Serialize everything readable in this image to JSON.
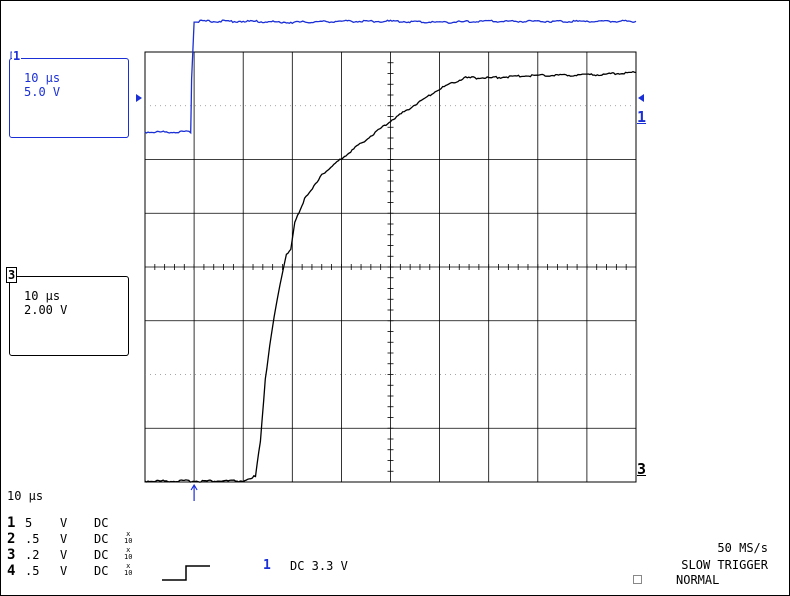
{
  "ch1_box": {
    "label": "1",
    "timebase": "10 μs",
    "scale": "5.0 V",
    "color": "#1a2fd6"
  },
  "ch3_box": {
    "label": "3",
    "timebase": "10 μs",
    "scale": "2.00 V",
    "color": "#000000"
  },
  "right_markers": {
    "ch1": "1",
    "ch3": "3"
  },
  "timebase_label": "10 μs",
  "channels": [
    {
      "num": "1",
      "scale": "5",
      "unit": "V",
      "coupling": "DC",
      "probe": ""
    },
    {
      "num": "2",
      "scale": ".5",
      "unit": "V",
      "coupling": "DC",
      "probe": "x\n10"
    },
    {
      "num": "3",
      "scale": ".2",
      "unit": "V",
      "coupling": "DC",
      "probe": "x\n10"
    },
    {
      "num": "4",
      "scale": ".5",
      "unit": "V",
      "coupling": "DC",
      "probe": "x\n10"
    }
  ],
  "trigger": {
    "source": "1",
    "level": "DC 3.3 V"
  },
  "acquisition": {
    "rate": "50 MS/s",
    "mode": "SLOW TRIGGER",
    "trigger_mode": "NORMAL"
  },
  "chart_data": {
    "type": "line",
    "divisions_x": 10,
    "divisions_y": 8,
    "x_unit": "μs",
    "x_per_div": 10,
    "xlim": [
      0,
      100
    ],
    "trigger_x": 10,
    "series": [
      {
        "name": "1",
        "color": "#1a2fd6",
        "volts_per_div": 5,
        "points": [
          [
            0,
            0
          ],
          [
            9.3,
            0
          ],
          [
            9.5,
            5
          ],
          [
            10,
            10.3
          ],
          [
            20,
            10.3
          ],
          [
            30,
            10.2
          ],
          [
            40,
            10.3
          ],
          [
            50,
            10.3
          ],
          [
            60,
            10.2
          ],
          [
            70,
            10.3
          ],
          [
            80,
            10.3
          ],
          [
            90,
            10.3
          ],
          [
            100,
            10.3
          ]
        ]
      },
      {
        "name": "3",
        "color": "#000000",
        "volts_per_div": 2,
        "points": [
          [
            0,
            0
          ],
          [
            20,
            0
          ],
          [
            22.5,
            0.2
          ],
          [
            23.5,
            1.5
          ],
          [
            24.5,
            3.8
          ],
          [
            26,
            5.8
          ],
          [
            27.5,
            7.3
          ],
          [
            28.8,
            8.4
          ],
          [
            29.7,
            8.6
          ],
          [
            30.5,
            9.6
          ],
          [
            32.5,
            10.5
          ],
          [
            36,
            11.4
          ],
          [
            40,
            12.0
          ],
          [
            45,
            12.7
          ],
          [
            50,
            13.4
          ],
          [
            55,
            14.0
          ],
          [
            60,
            14.6
          ],
          [
            65,
            15.0
          ],
          [
            70,
            15.0
          ],
          [
            80,
            15.1
          ],
          [
            90,
            15.1
          ],
          [
            100,
            15.2
          ]
        ]
      }
    ]
  }
}
